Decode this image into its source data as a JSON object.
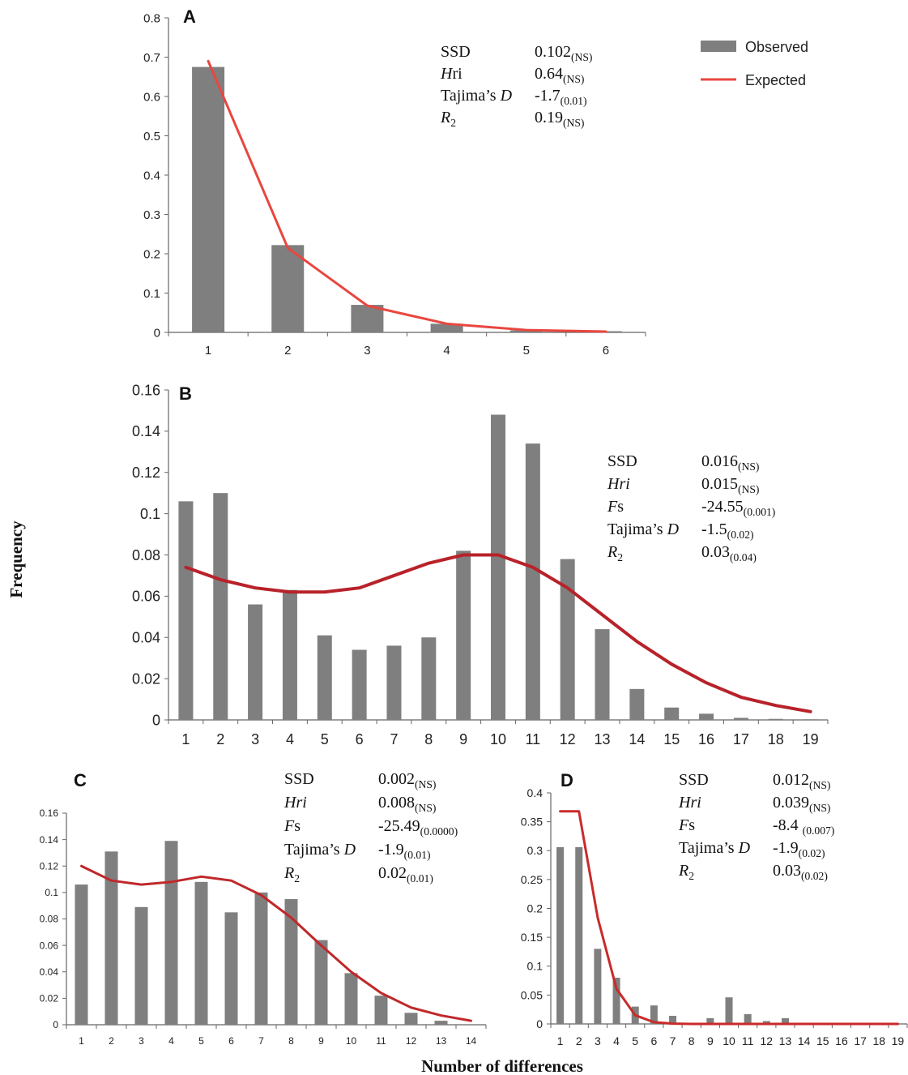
{
  "figure": {
    "ylabel": "Frequency",
    "xlabel": "Number of differences"
  },
  "legend": {
    "observed": "Observed",
    "expected": "Expected"
  },
  "colors": {
    "observed_bar": "#7f7f7f",
    "expected_line_A": "#e8473f",
    "expected_line_B": "#b8222a",
    "expected_line_C": "#c0282a",
    "expected_line_D": "#c92a2a"
  },
  "chart_data": [
    {
      "panel": "A",
      "type": "bar",
      "categories": [
        "1",
        "2",
        "3",
        "4",
        "5",
        "6"
      ],
      "ylim": [
        0,
        0.8
      ],
      "yticks": [
        "0",
        "0.1",
        "0.2",
        "0.3",
        "0.4",
        "0.5",
        "0.6",
        "0.7",
        "0.8"
      ],
      "series": [
        {
          "name": "Observed",
          "type": "bar",
          "values": [
            0.675,
            0.222,
            0.07,
            0.022,
            0.005,
            0.003
          ]
        },
        {
          "name": "Expected",
          "type": "line",
          "values": [
            0.69,
            0.215,
            0.068,
            0.022,
            0.006,
            0.002
          ]
        }
      ],
      "stats": [
        {
          "pre": "SSD",
          "it": "",
          "post": "",
          "sub": "",
          "value": "0.102",
          "p": "(NS)"
        },
        {
          "pre": "",
          "it": "H",
          "post": "ri",
          "sub": "",
          "value": "0.64",
          "p": "(NS)"
        },
        {
          "pre": "Tajima’s ",
          "it": "D",
          "post": "",
          "sub": "",
          "value": "-1.7",
          "p": "(0.01)"
        },
        {
          "pre": "",
          "it": "R",
          "post": "",
          "sub": "2",
          "value": "0.19",
          "p": "(NS)"
        }
      ]
    },
    {
      "panel": "B",
      "type": "bar",
      "categories": [
        "1",
        "2",
        "3",
        "4",
        "5",
        "6",
        "7",
        "8",
        "9",
        "10",
        "11",
        "12",
        "13",
        "14",
        "15",
        "16",
        "17",
        "18",
        "19"
      ],
      "ylim": [
        0,
        0.16
      ],
      "yticks": [
        "0",
        "0.02",
        "0.04",
        "0.06",
        "0.08",
        "0.1",
        "0.12",
        "0.14",
        "0.16"
      ],
      "series": [
        {
          "name": "Observed",
          "type": "bar",
          "values": [
            0.106,
            0.11,
            0.056,
            0.063,
            0.041,
            0.034,
            0.036,
            0.04,
            0.082,
            0.148,
            0.134,
            0.078,
            0.044,
            0.015,
            0.006,
            0.003,
            0.001,
            0.0005,
            0.0003
          ]
        },
        {
          "name": "Expected",
          "type": "line",
          "values": [
            0.074,
            0.068,
            0.064,
            0.062,
            0.062,
            0.064,
            0.07,
            0.076,
            0.08,
            0.08,
            0.074,
            0.064,
            0.051,
            0.038,
            0.027,
            0.018,
            0.011,
            0.007,
            0.004
          ]
        }
      ],
      "stats": [
        {
          "pre": "SSD",
          "it": "",
          "post": "",
          "sub": "",
          "value": "0.016",
          "p": "(NS)"
        },
        {
          "pre": "",
          "it": "Hri",
          "post": "",
          "sub": "",
          "value": "0.015",
          "p": "(NS)"
        },
        {
          "pre": "",
          "it": "F",
          "post": "s",
          "sub": "",
          "value": "-24.55",
          "p": "(0.001)"
        },
        {
          "pre": "Tajima’s ",
          "it": "D",
          "post": "",
          "sub": "",
          "value": "-1.5",
          "p": "(0.02)"
        },
        {
          "pre": "",
          "it": "R",
          "post": "",
          "sub": "2",
          "value": "0.03",
          "p": "(0.04)"
        }
      ]
    },
    {
      "panel": "C",
      "type": "bar",
      "categories": [
        "1",
        "2",
        "3",
        "4",
        "5",
        "6",
        "7",
        "8",
        "9",
        "10",
        "11",
        "12",
        "13",
        "14"
      ],
      "ylim": [
        0,
        0.16
      ],
      "yticks": [
        "0",
        "0.02",
        "0.04",
        "0.06",
        "0.08",
        "0.1",
        "0.12",
        "0.14",
        "0.16"
      ],
      "series": [
        {
          "name": "Observed",
          "type": "bar",
          "values": [
            0.106,
            0.131,
            0.089,
            0.139,
            0.108,
            0.085,
            0.1,
            0.095,
            0.064,
            0.039,
            0.022,
            0.009,
            0.003,
            0
          ]
        },
        {
          "name": "Expected",
          "type": "line",
          "values": [
            0.12,
            0.109,
            0.106,
            0.108,
            0.112,
            0.109,
            0.098,
            0.081,
            0.06,
            0.04,
            0.024,
            0.013,
            0.007,
            0.003
          ]
        }
      ],
      "stats": [
        {
          "pre": "SSD",
          "it": "",
          "post": "",
          "sub": "",
          "value": "0.002",
          "p": "(NS)"
        },
        {
          "pre": "",
          "it": "Hri",
          "post": "",
          "sub": "",
          "value": "0.008",
          "p": "(NS)"
        },
        {
          "pre": "",
          "it": "F",
          "post": "s",
          "sub": "",
          "value": "-25.49",
          "p": "(0.0000)"
        },
        {
          "pre": "Tajima’s ",
          "it": "D",
          "post": "",
          "sub": "",
          "value": "-1.9",
          "p": "(0.01)"
        },
        {
          "pre": "",
          "it": "R",
          "post": "",
          "sub": "2",
          "value": "0.02",
          "p": "(0.01)"
        }
      ]
    },
    {
      "panel": "D",
      "type": "bar",
      "categories": [
        "1",
        "2",
        "3",
        "4",
        "5",
        "6",
        "7",
        "8",
        "9",
        "10",
        "11",
        "12",
        "13",
        "14",
        "15",
        "16",
        "17",
        "18",
        "19"
      ],
      "ylim": [
        0,
        0.4
      ],
      "yticks": [
        "0",
        "0.05",
        "0.1",
        "0.15",
        "0.2",
        "0.25",
        "0.3",
        "0.35",
        "0.4"
      ],
      "series": [
        {
          "name": "Observed",
          "type": "bar",
          "values": [
            0.306,
            0.306,
            0.13,
            0.08,
            0.03,
            0.032,
            0.014,
            0,
            0.01,
            0.046,
            0.017,
            0.005,
            0.01,
            0,
            0,
            0,
            0,
            0,
            0
          ]
        },
        {
          "name": "Expected",
          "type": "line",
          "values": [
            0.368,
            0.368,
            0.184,
            0.061,
            0.015,
            0.003,
            0.0005,
            0,
            0,
            0,
            0,
            0,
            0,
            0,
            0,
            0,
            0,
            0,
            0
          ]
        }
      ],
      "stats": [
        {
          "pre": "SSD",
          "it": "",
          "post": "",
          "sub": "",
          "value": "0.012",
          "p": "(NS)"
        },
        {
          "pre": "",
          "it": "Hri",
          "post": "",
          "sub": "",
          "value": "0.039",
          "p": "(NS)"
        },
        {
          "pre": "",
          "it": "F",
          "post": "s",
          "sub": "",
          "value": "-8.4 ",
          "p": "(0.007)"
        },
        {
          "pre": "Tajima’s ",
          "it": "D",
          "post": "",
          "sub": "",
          "value": "-1.9",
          "p": "(0.02)"
        },
        {
          "pre": "",
          "it": "R",
          "post": "",
          "sub": "2",
          "value": "0.03",
          "p": "(0.02)"
        }
      ]
    }
  ]
}
